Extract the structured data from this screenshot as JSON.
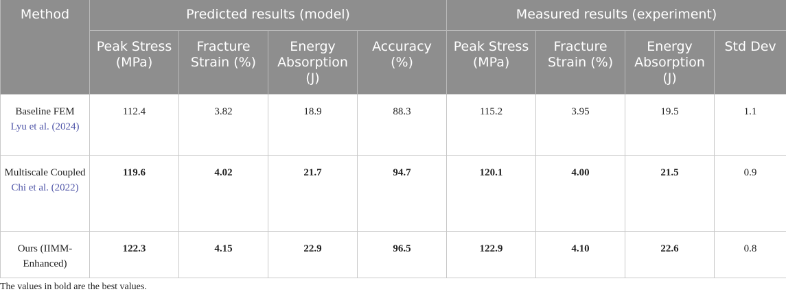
{
  "header": {
    "method": "Method",
    "group_predicted": "Predicted results (model)",
    "group_measured": "Measured results (experiment)",
    "predicted_cols": [
      "Peak Stress (MPa)",
      "Fracture Strain (%)",
      "Energy Absorption (J)",
      "Accuracy (%)"
    ],
    "measured_cols": [
      "Peak Stress (MPa)",
      "Fracture Strain (%)",
      "Energy Absorption (J)",
      "Std Dev"
    ]
  },
  "rows": [
    {
      "method": "Baseline FEM",
      "citation": "Lyu et al. (2024)",
      "values": [
        "112.4",
        "3.82",
        "18.9",
        "88.3",
        "115.2",
        "3.95",
        "19.5",
        "1.1"
      ]
    },
    {
      "method": "Multiscale Coupled",
      "citation": "Chi et al. (2022)",
      "values": [
        "119.6",
        "4.02",
        "21.7",
        "94.7",
        "120.1",
        "4.00",
        "21.5",
        "0.9"
      ]
    },
    {
      "method": "Ours (IIMM-Enhanced)",
      "citation": "",
      "values": [
        "122.3",
        "4.15",
        "22.9",
        "96.5",
        "122.9",
        "4.10",
        "22.6",
        "0.8"
      ]
    }
  ],
  "footnote": "The values in bold are the best values.",
  "colors": {
    "header_bg": "#8e8e8e",
    "header_text": "#ffffff",
    "citation": "#4f55a8"
  }
}
